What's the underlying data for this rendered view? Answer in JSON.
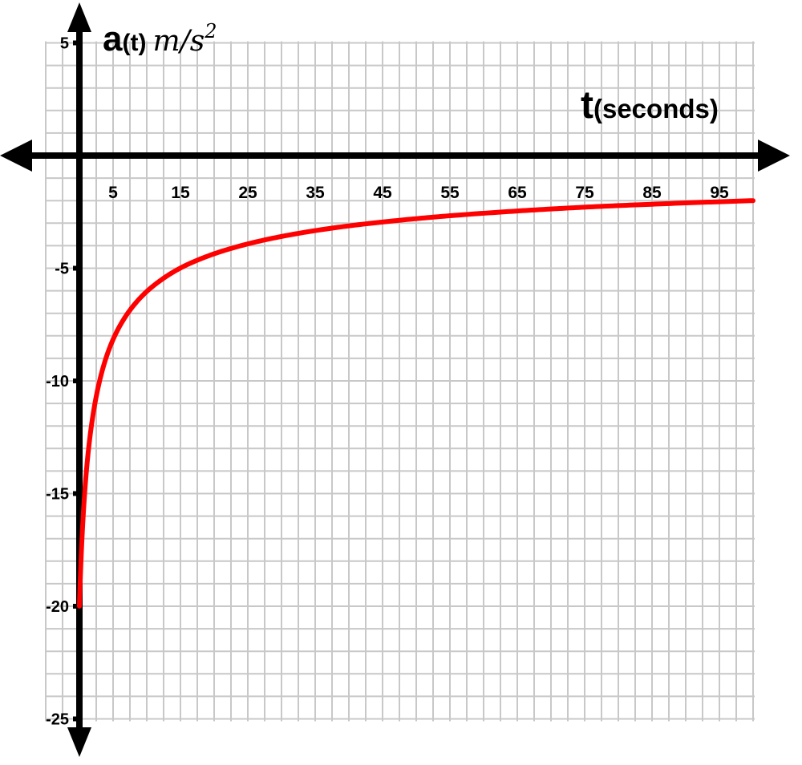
{
  "chart_data": {
    "type": "line",
    "ylabel": {
      "main": "a",
      "arg": "(t)",
      "unit_base": "m/s",
      "unit_exp": "2"
    },
    "xlabel": {
      "main": "t",
      "sub": "(seconds)"
    },
    "xlim": [
      -10,
      100
    ],
    "ylim": [
      -25,
      5
    ],
    "x_ticks": [
      "5",
      "15",
      "25",
      "35",
      "45",
      "55",
      "65",
      "75",
      "85",
      "95"
    ],
    "y_ticks": [
      "5",
      "-5",
      "-10",
      "-15",
      "-20",
      "-25"
    ],
    "grid": true,
    "series": [
      {
        "color": "#ff0000",
        "x": [
          0,
          0.25,
          0.5,
          1,
          1.5,
          2,
          3,
          4,
          5,
          6,
          8,
          10,
          12,
          15,
          20,
          25,
          30,
          35,
          40,
          45,
          50,
          55,
          60,
          65,
          70,
          75,
          80,
          85,
          90,
          95,
          100
        ],
        "y": [
          -20,
          -17.89,
          -16.33,
          -14.14,
          -12.65,
          -11.55,
          -10.0,
          -8.94,
          -8.16,
          -7.56,
          -6.67,
          -6.03,
          -5.55,
          -4.99,
          -4.36,
          -3.92,
          -3.59,
          -3.33,
          -3.12,
          -2.95,
          -2.8,
          -2.67,
          -2.56,
          -2.46,
          -2.37,
          -2.29,
          -2.22,
          -2.16,
          -2.1,
          -2.05,
          -2.0
        ]
      }
    ]
  },
  "colors": {
    "axis": "#000000",
    "grid": "#c8c8c8",
    "curve": "#ff0000"
  }
}
